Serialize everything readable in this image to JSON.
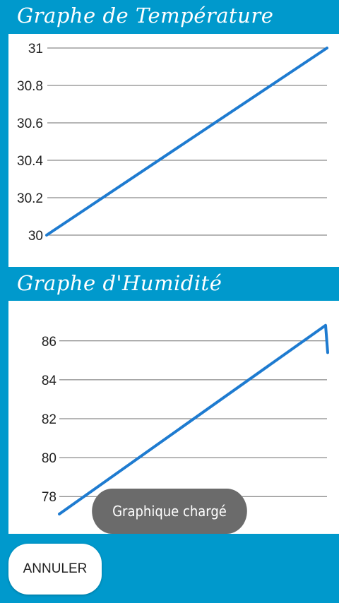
{
  "temperature": {
    "title": "Graphe de Température"
  },
  "humidity": {
    "title": "Graphe d'Humidité"
  },
  "toast": {
    "message": "Graphique chargé"
  },
  "actions": {
    "cancel_label": "ANNULER"
  },
  "colors": {
    "background": "#0099cc",
    "series": "#1e7bd0",
    "toast": "#6b6b6b"
  },
  "chart_data": [
    {
      "type": "line",
      "title": "Graphe de Température",
      "xlabel": "",
      "ylabel": "",
      "ylim": [
        30,
        31
      ],
      "yticks": [
        "30",
        "30.2",
        "30.4",
        "30.6",
        "30.8",
        "31"
      ],
      "grid": true,
      "series": [
        {
          "values": [
            30,
            31
          ]
        }
      ]
    },
    {
      "type": "line",
      "title": "Graphe d'Humidité",
      "xlabel": "",
      "ylabel": "",
      "ylim": [
        77.5,
        86.5
      ],
      "yticks": [
        "78",
        "80",
        "82",
        "84",
        "86"
      ],
      "grid": true,
      "series": [
        {
          "values": [
            77.1,
            86.8,
            85.4
          ]
        }
      ]
    }
  ]
}
